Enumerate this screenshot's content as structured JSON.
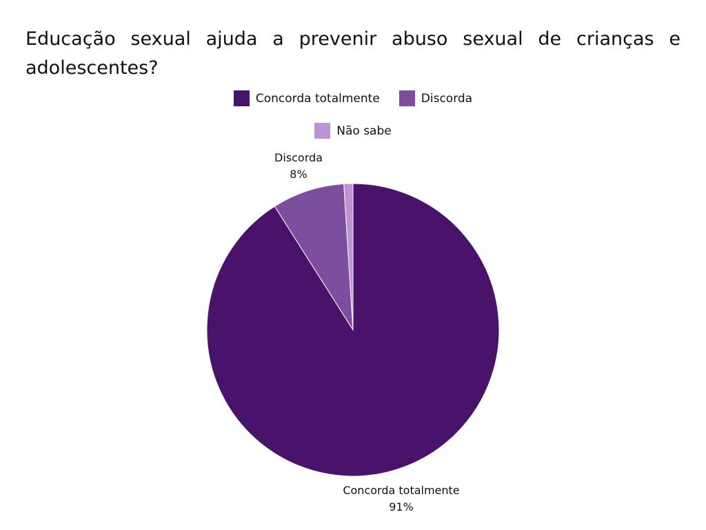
{
  "chart_data": {
    "type": "pie",
    "title": "Educação sexual ajuda a prevenir abuso sexual de crianças e adolescentes?",
    "categories": [
      "Concorda totalmente",
      "Discorda",
      "Não sabe"
    ],
    "values": [
      91,
      8,
      1
    ],
    "data_labels": [
      {
        "category": "Concorda totalmente",
        "percent": "91%"
      },
      {
        "category": "Discorda",
        "percent": "8%"
      }
    ],
    "colors": [
      "#4a136b",
      "#7b4f9d",
      "#bb95d2"
    ],
    "legend_position": "top",
    "start_angle_deg": 0,
    "direction": "clockwise"
  }
}
